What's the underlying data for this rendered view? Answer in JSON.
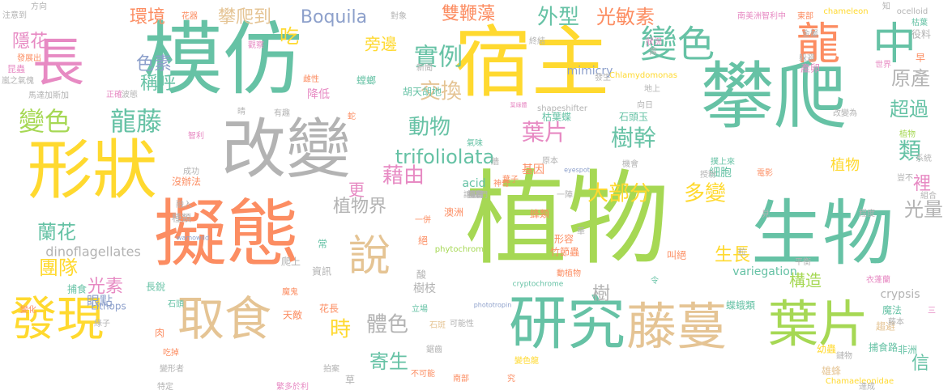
{
  "palette": {
    "teal": "#66c2a5",
    "orange": "#fc8d62",
    "blue": "#8da0cb",
    "pink": "#e78ac3",
    "green": "#a6d854",
    "yellow": "#ffd92f",
    "tan": "#e5c494",
    "gray": "#b3b3b3"
  },
  "words": [
    {
      "text": "植物",
      "color": "green"
    },
    {
      "text": "宿主",
      "color": "yellow"
    },
    {
      "text": "模仿",
      "color": "teal"
    },
    {
      "text": "攀爬",
      "color": "teal"
    },
    {
      "text": "擬態",
      "color": "orange"
    },
    {
      "text": "生物",
      "color": "teal"
    },
    {
      "text": "形狀",
      "color": "yellow"
    },
    {
      "text": "改變",
      "color": "gray"
    },
    {
      "text": "研究",
      "color": "teal"
    },
    {
      "text": "藤蔓",
      "color": "tan"
    },
    {
      "text": "葉片",
      "color": "green"
    },
    {
      "text": "長",
      "color": "pink"
    },
    {
      "text": "發現",
      "color": "yellow"
    },
    {
      "text": "取食",
      "color": "tan"
    },
    {
      "text": "龍",
      "color": "orange"
    },
    {
      "text": "中",
      "color": "teal"
    },
    {
      "text": "說",
      "color": "tan"
    },
    {
      "text": "變色",
      "color": "teal"
    },
    {
      "text": "龍藤",
      "color": "teal"
    },
    {
      "text": "變色",
      "color": "green"
    },
    {
      "text": "實例",
      "color": "teal"
    },
    {
      "text": "外型",
      "color": "teal"
    },
    {
      "text": "光敏素",
      "color": "orange"
    },
    {
      "text": "交換",
      "color": "tan"
    },
    {
      "text": "環境",
      "color": "orange"
    },
    {
      "text": "攀爬到",
      "color": "tan"
    },
    {
      "text": "Boquila",
      "color": "blue"
    },
    {
      "text": "動物",
      "color": "teal"
    },
    {
      "text": "葉片",
      "color": "pink"
    },
    {
      "text": "樹幹",
      "color": "teal"
    },
    {
      "text": "trifoliolata",
      "color": "teal"
    },
    {
      "text": "藉由",
      "color": "pink"
    },
    {
      "text": "大部分",
      "color": "yellow"
    },
    {
      "text": "多變",
      "color": "yellow"
    },
    {
      "text": "植物界",
      "color": "gray"
    },
    {
      "text": "蘭花",
      "color": "teal"
    },
    {
      "text": "團隊",
      "color": "yellow"
    },
    {
      "text": "光素",
      "color": "pink"
    },
    {
      "text": "dinoflagellates",
      "color": "gray"
    },
    {
      "text": "體色",
      "color": "gray"
    },
    {
      "text": "寄生",
      "color": "teal"
    },
    {
      "text": "時",
      "color": "yellow"
    },
    {
      "text": "類",
      "color": "teal"
    },
    {
      "text": "裡",
      "color": "pink"
    },
    {
      "text": "光量",
      "color": "gray"
    },
    {
      "text": "原產",
      "color": "gray"
    },
    {
      "text": "超過",
      "color": "teal"
    },
    {
      "text": "雙鞭藻",
      "color": "orange"
    },
    {
      "text": "旁邊",
      "color": "yellow"
    },
    {
      "text": "色素",
      "color": "blue"
    },
    {
      "text": "稱呼",
      "color": "teal"
    },
    {
      "text": "吃",
      "color": "yellow"
    },
    {
      "text": "隱花",
      "color": "pink"
    },
    {
      "text": "更",
      "color": "pink"
    },
    {
      "text": "生長",
      "color": "yellow"
    },
    {
      "text": "構造",
      "color": "green"
    },
    {
      "text": "信",
      "color": "teal"
    },
    {
      "text": "樹",
      "color": "gray"
    },
    {
      "text": "眼點",
      "color": "blue"
    },
    {
      "text": "植物",
      "color": "yellow"
    },
    {
      "text": "草",
      "color": "gray"
    },
    {
      "text": "酸",
      "color": "gray"
    },
    {
      "text": "mimicry",
      "color": "blue"
    },
    {
      "text": "acid",
      "color": "teal"
    },
    {
      "text": "基因",
      "color": "orange"
    },
    {
      "text": "細胞",
      "color": "teal"
    },
    {
      "text": "樹枝",
      "color": "gray"
    },
    {
      "text": "variegation",
      "color": "teal"
    },
    {
      "text": "crypsis",
      "color": "gray"
    },
    {
      "text": "Lithops",
      "color": "blue"
    },
    {
      "text": "捕食",
      "color": "teal"
    },
    {
      "text": "天敵",
      "color": "orange"
    },
    {
      "text": "非洲",
      "color": "teal"
    },
    {
      "text": "趨避",
      "color": "tan"
    },
    {
      "text": "雄蜂",
      "color": "tan"
    },
    {
      "text": "幼蟲",
      "color": "yellow"
    },
    {
      "text": "鏈物",
      "color": "gray"
    },
    {
      "text": "螳螂",
      "color": "teal"
    },
    {
      "text": "胡天胡地",
      "color": "teal"
    },
    {
      "text": "枯葉蝶",
      "color": "teal"
    },
    {
      "text": "石頭玉",
      "color": "teal"
    },
    {
      "text": "shapeshifter",
      "color": "gray"
    },
    {
      "text": "Chamaeleonidae",
      "color": "yellow"
    },
    {
      "text": "chameleon",
      "color": "yellow"
    },
    {
      "text": "ocelloid",
      "color": "gray"
    },
    {
      "text": "Chlamydomonas",
      "color": "yellow"
    },
    {
      "text": "phytochrome",
      "color": "green"
    },
    {
      "text": "cryptochrome",
      "color": "teal"
    },
    {
      "text": "phototropin",
      "color": "blue"
    },
    {
      "text": "eyespot",
      "color": "blue"
    },
    {
      "text": "wamowild",
      "color": "blue"
    },
    {
      "text": "葉綠體",
      "color": "pink"
    },
    {
      "text": "昆蟲",
      "color": "pink"
    },
    {
      "text": "正確",
      "color": "pink"
    },
    {
      "text": "馬達加斯加",
      "color": "gray"
    },
    {
      "text": "智利",
      "color": "pink"
    },
    {
      "text": "澳洲",
      "color": "orange"
    },
    {
      "text": "南美洲智利中",
      "color": "pink"
    },
    {
      "text": "東部",
      "color": "orange"
    },
    {
      "text": "枯葉",
      "color": "teal"
    },
    {
      "text": "花器",
      "color": "orange"
    },
    {
      "text": "對象",
      "color": "gray"
    },
    {
      "text": "終結",
      "color": "gray"
    },
    {
      "text": "觀察",
      "color": "pink"
    },
    {
      "text": "晴",
      "color": "gray"
    },
    {
      "text": "新聞",
      "color": "gray"
    },
    {
      "text": "一陣",
      "color": "gray"
    },
    {
      "text": "一併",
      "color": "orange"
    },
    {
      "text": "絕",
      "color": "orange"
    },
    {
      "text": "蜂類",
      "color": "orange"
    },
    {
      "text": "竹節蟲",
      "color": "orange"
    },
    {
      "text": "形容",
      "color": "orange"
    },
    {
      "text": "動植物",
      "color": "orange"
    },
    {
      "text": "立場",
      "color": "teal"
    },
    {
      "text": "石斑",
      "color": "tan"
    },
    {
      "text": "魔鬼",
      "color": "orange"
    },
    {
      "text": "吃掉",
      "color": "orange"
    },
    {
      "text": "變形者",
      "color": "gray"
    },
    {
      "text": "特定",
      "color": "gray"
    },
    {
      "text": "拍案",
      "color": "gray"
    },
    {
      "text": "不可能",
      "color": "orange"
    },
    {
      "text": "叫絕",
      "color": "orange"
    },
    {
      "text": "電影",
      "color": "orange"
    },
    {
      "text": "授粉",
      "color": "gray"
    },
    {
      "text": "撲上來",
      "color": "teal"
    },
    {
      "text": "捕食路",
      "color": "teal"
    },
    {
      "text": "蝶蛾類",
      "color": "teal"
    },
    {
      "text": "魔法",
      "color": "teal"
    },
    {
      "text": "令",
      "color": "teal"
    },
    {
      "text": "常",
      "color": "teal"
    },
    {
      "text": "長銳",
      "color": "teal"
    },
    {
      "text": "花長",
      "color": "orange"
    },
    {
      "text": "肉",
      "color": "orange"
    },
    {
      "text": "變化",
      "color": "orange"
    },
    {
      "text": "石頭",
      "color": "teal"
    },
    {
      "text": "爬上",
      "color": "gray"
    },
    {
      "text": "有趣",
      "color": "gray"
    },
    {
      "text": "降低",
      "color": "pink"
    },
    {
      "text": "雌性",
      "color": "orange"
    },
    {
      "text": "蛇",
      "color": "orange"
    },
    {
      "text": "葉子",
      "color": "orange"
    },
    {
      "text": "種類",
      "color": "gray"
    },
    {
      "text": "融入",
      "color": "gray"
    },
    {
      "text": "沒辦法",
      "color": "orange"
    },
    {
      "text": "成功",
      "color": "gray"
    },
    {
      "text": "發展出",
      "color": "orange"
    },
    {
      "text": "早",
      "color": "orange"
    },
    {
      "text": "世界",
      "color": "pink"
    },
    {
      "text": "產卵",
      "color": "pink"
    },
    {
      "text": "躲避",
      "color": "gray"
    },
    {
      "text": "役料",
      "color": "gray"
    },
    {
      "text": "金屬",
      "color": "gray"
    },
    {
      "text": "改變為",
      "color": "gray"
    },
    {
      "text": "原本",
      "color": "gray"
    },
    {
      "text": "牆",
      "color": "gray"
    },
    {
      "text": "神奇",
      "color": "orange"
    },
    {
      "text": "方向",
      "color": "gray"
    },
    {
      "text": "注意到",
      "color": "gray"
    },
    {
      "text": "嵐之氣傀",
      "color": "gray"
    },
    {
      "text": "波態",
      "color": "gray"
    },
    {
      "text": "資訊",
      "color": "gray"
    },
    {
      "text": "綠子",
      "color": "gray"
    },
    {
      "text": "氣味",
      "color": "teal"
    },
    {
      "text": "程度",
      "color": "gray"
    },
    {
      "text": "南部",
      "color": "orange"
    },
    {
      "text": "可能性",
      "color": "gray"
    },
    {
      "text": "變色龍",
      "color": "yellow"
    },
    {
      "text": "究",
      "color": "orange"
    },
    {
      "text": "平衡",
      "color": "gray"
    },
    {
      "text": "衣蓬蘭",
      "color": "pink"
    },
    {
      "text": "藤本",
      "color": "gray"
    },
    {
      "text": "系統",
      "color": "gray"
    },
    {
      "text": "發生",
      "color": "gray"
    },
    {
      "text": "鋸齒",
      "color": "gray"
    },
    {
      "text": "繁多於利",
      "color": "pink"
    },
    {
      "text": "植物",
      "color": "green"
    },
    {
      "text": "豈不",
      "color": "gray"
    },
    {
      "text": "組合",
      "color": "gray"
    },
    {
      "text": "三",
      "color": "pink"
    },
    {
      "text": "達成",
      "color": "gray"
    },
    {
      "text": "見",
      "color": "gray"
    },
    {
      "text": "粒",
      "color": "gray"
    },
    {
      "text": "華",
      "color": "gray"
    },
    {
      "text": "狀況",
      "color": "pink"
    },
    {
      "text": "萬",
      "color": "gray"
    },
    {
      "text": "地上",
      "color": "gray"
    },
    {
      "text": "向日",
      "color": "gray"
    },
    {
      "text": "機會",
      "color": "gray"
    },
    {
      "text": "知",
      "color": "gray"
    },
    {
      "text": "莖有",
      "color": "gray"
    },
    {
      "text": "複葉",
      "color": "gray"
    },
    {
      "text": "損害",
      "color": "gray"
    },
    {
      "text": "避",
      "color": "gray"
    },
    {
      "text": "讓我們",
      "color": "gray"
    }
  ]
}
